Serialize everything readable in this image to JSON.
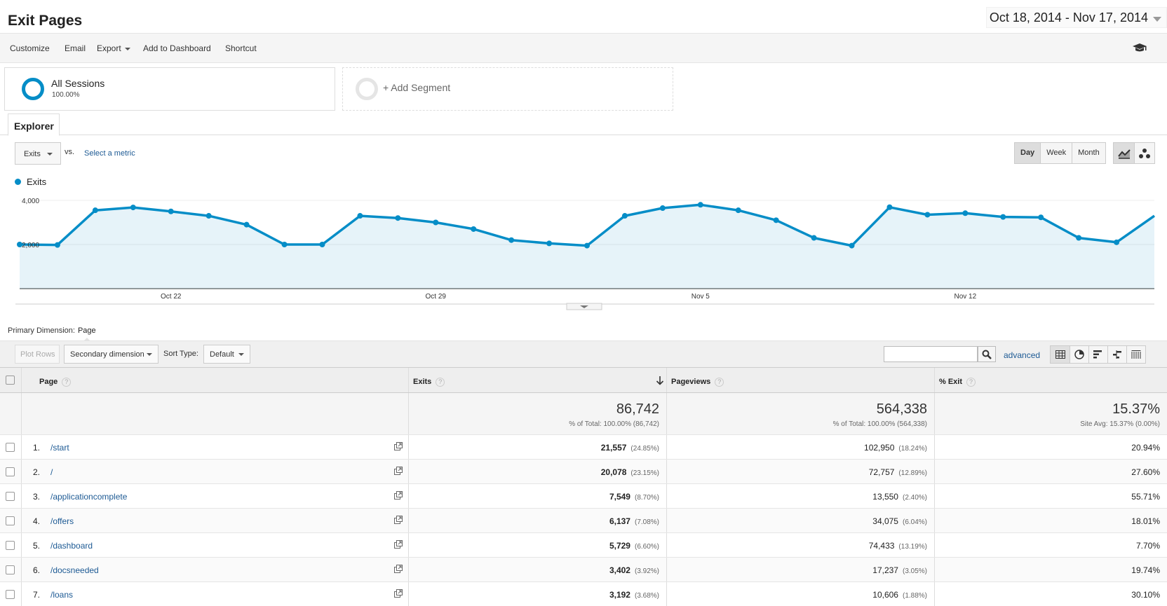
{
  "header": {
    "title": "Exit Pages",
    "date_range": "Oct 18, 2014 - Nov 17, 2014"
  },
  "toolbar": {
    "customize": "Customize",
    "email": "Email",
    "export": "Export",
    "add_dashboard": "Add to Dashboard",
    "shortcut": "Shortcut"
  },
  "segments": {
    "all_name": "All Sessions",
    "all_pct": "100.00%",
    "add_label": "+ Add Segment"
  },
  "tabs": {
    "explorer": "Explorer"
  },
  "chart_controls": {
    "metric": "Exits",
    "vs": "vs.",
    "select_metric": "Select a metric",
    "day": "Day",
    "week": "Week",
    "month": "Month"
  },
  "legend": {
    "series": "Exits"
  },
  "chart_data": {
    "type": "area",
    "series": [
      {
        "name": "Exits",
        "color": "#058dc7",
        "values": [
          2000,
          1980,
          3550,
          3680,
          3500,
          3300,
          2900,
          2000,
          2000,
          3300,
          3200,
          3000,
          2700,
          2200,
          2050,
          1950,
          3300,
          3650,
          3800,
          3550,
          3100,
          2300,
          1950,
          3690,
          3350,
          3420,
          3250,
          3230,
          2300,
          2100,
          3300
        ]
      }
    ],
    "x_ticks": [
      "Oct 22",
      "Oct 29",
      "Nov 5",
      "Nov 12"
    ],
    "y_ticks": [
      "4,000",
      "2,000"
    ],
    "ylim": [
      0,
      4000
    ]
  },
  "table_controls": {
    "primary_dimension_label": "Primary Dimension:",
    "primary_dimension_value": "Page",
    "plot_rows": "Plot Rows",
    "secondary_dimension": "Secondary dimension",
    "sort_type_label": "Sort Type:",
    "sort_type_value": "Default",
    "advanced": "advanced"
  },
  "table": {
    "columns": {
      "page": "Page",
      "exits": "Exits",
      "pageviews": "Pageviews",
      "pct_exit": "% Exit"
    },
    "totals": {
      "exits": "86,742",
      "exits_sub": "% of Total: 100.00% (86,742)",
      "pageviews": "564,338",
      "pageviews_sub": "% of Total: 100.00% (564,338)",
      "pct_exit": "15.37%",
      "pct_exit_sub": "Site Avg: 15.37% (0.00%)"
    },
    "rows": [
      {
        "num": "1.",
        "page": "/start",
        "exits": "21,557",
        "exits_pct": "(24.85%)",
        "pageviews": "102,950",
        "pageviews_pct": "(18.24%)",
        "pct_exit": "20.94%"
      },
      {
        "num": "2.",
        "page": "/",
        "exits": "20,078",
        "exits_pct": "(23.15%)",
        "pageviews": "72,757",
        "pageviews_pct": "(12.89%)",
        "pct_exit": "27.60%"
      },
      {
        "num": "3.",
        "page": "/applicationcomplete",
        "exits": "7,549",
        "exits_pct": "(8.70%)",
        "pageviews": "13,550",
        "pageviews_pct": "(2.40%)",
        "pct_exit": "55.71%"
      },
      {
        "num": "4.",
        "page": "/offers",
        "exits": "6,137",
        "exits_pct": "(7.08%)",
        "pageviews": "34,075",
        "pageviews_pct": "(6.04%)",
        "pct_exit": "18.01%"
      },
      {
        "num": "5.",
        "page": "/dashboard",
        "exits": "5,729",
        "exits_pct": "(6.60%)",
        "pageviews": "74,433",
        "pageviews_pct": "(13.19%)",
        "pct_exit": "7.70%"
      },
      {
        "num": "6.",
        "page": "/docsneeded",
        "exits": "3,402",
        "exits_pct": "(3.92%)",
        "pageviews": "17,237",
        "pageviews_pct": "(3.05%)",
        "pct_exit": "19.74%"
      },
      {
        "num": "7.",
        "page": "/loans",
        "exits": "3,192",
        "exits_pct": "(3.68%)",
        "pageviews": "10,606",
        "pageviews_pct": "(1.88%)",
        "pct_exit": "30.10%"
      }
    ]
  }
}
